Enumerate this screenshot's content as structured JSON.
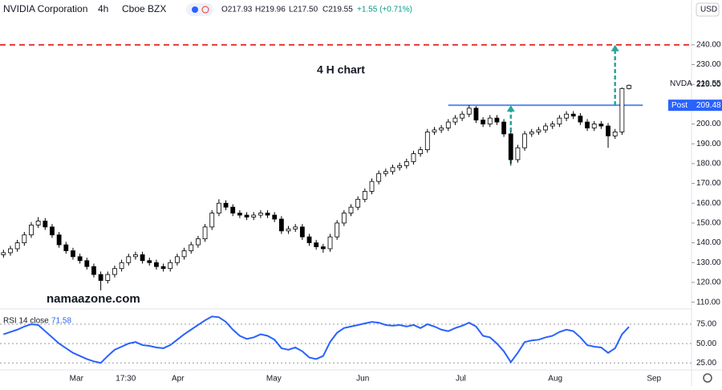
{
  "header": {
    "symbol": "NVIDIA Corporation",
    "interval": "4h",
    "exchange": "Cboe BZX",
    "open": "O217.93",
    "high": "H219.96",
    "low": "L217.50",
    "close": "C219.55",
    "change": "+1.55 (+0.71%)",
    "currency": "USD"
  },
  "annotations": {
    "chart_label": "4 H chart",
    "watermark": "namaazone.com",
    "symbol_tag": "NVDA",
    "post_tag": "Post"
  },
  "chart_data": [
    {
      "type": "candlestick",
      "up_color": "#ffffff",
      "down_color": "#000000",
      "open": [
        134,
        135,
        137,
        140,
        144,
        149,
        151,
        148,
        144,
        139,
        136,
        133,
        131,
        128,
        124,
        121,
        124,
        127,
        130,
        133,
        134,
        131,
        130,
        128,
        127,
        130,
        133,
        136,
        139,
        142,
        148,
        155,
        160,
        158,
        155,
        154,
        153,
        154,
        155,
        154,
        152,
        146,
        147,
        148,
        143,
        140,
        138,
        137,
        143,
        150,
        155,
        158,
        162,
        166,
        171,
        175,
        176,
        178,
        179,
        181,
        185,
        187,
        196,
        197,
        198,
        201,
        203,
        205,
        208,
        202,
        200,
        203,
        201,
        195,
        182,
        188,
        195,
        196,
        197,
        199,
        200,
        203,
        205,
        204,
        201,
        198,
        200,
        199,
        194,
        196,
        217.93
      ],
      "high": [
        136.5,
        138.5,
        141.5,
        145.5,
        150.5,
        153,
        152.5,
        149.5,
        145.5,
        140.5,
        137.5,
        134.5,
        132.5,
        129.5,
        125.5,
        125.5,
        128.5,
        131.5,
        134.5,
        135.5,
        135.5,
        132.5,
        131.5,
        129.5,
        131.5,
        134.5,
        137.5,
        140.5,
        143.5,
        149.5,
        156.5,
        162,
        161.5,
        159.5,
        156.5,
        155.5,
        155.5,
        156.5,
        156.5,
        155.5,
        153.5,
        148.5,
        149.5,
        149.5,
        144.5,
        141.5,
        139.5,
        144.5,
        151.5,
        156.5,
        159.5,
        163.5,
        167.5,
        172.5,
        176.5,
        177.5,
        179.5,
        180.5,
        182.5,
        186.5,
        188.5,
        197.5,
        198.5,
        199.5,
        202.5,
        204.5,
        206.5,
        209.5,
        209,
        203.5,
        204.5,
        204.5,
        202.5,
        196.5,
        189.5,
        196.5,
        197.5,
        198.5,
        200.5,
        201.5,
        204.5,
        206.5,
        206.5,
        205.5,
        202.5,
        201.5,
        201.5,
        200.5,
        197.5,
        218.5,
        219.96
      ],
      "low": [
        132.5,
        133.5,
        135.5,
        138.5,
        142.5,
        147.5,
        146.5,
        142.5,
        137.5,
        134.5,
        131.5,
        129.5,
        126.5,
        122.5,
        116,
        119.5,
        122.5,
        125.5,
        128.5,
        131.5,
        129.5,
        128.5,
        126.5,
        125.5,
        125.5,
        128.5,
        131.5,
        134.5,
        137.5,
        140.5,
        146.5,
        153.5,
        156.5,
        153.5,
        152.5,
        151.5,
        151.5,
        152.5,
        152.5,
        150.5,
        144.5,
        144.5,
        145.5,
        141.5,
        138.5,
        136.5,
        135,
        135.5,
        141.5,
        148.5,
        153.5,
        156.5,
        160.5,
        164.5,
        169.5,
        173.5,
        174.5,
        176.5,
        177.5,
        179.5,
        183.5,
        185.5,
        194.5,
        195.5,
        196.5,
        199.5,
        201.5,
        203.5,
        200.5,
        198.5,
        198.5,
        199.5,
        193.5,
        179,
        180.5,
        186.5,
        193.5,
        194.5,
        195.5,
        197.5,
        198.5,
        201.5,
        202.5,
        199.5,
        196.5,
        196.5,
        197.5,
        188,
        192.5,
        194.5,
        217.5
      ],
      "close": [
        135,
        137,
        140,
        144,
        149,
        151,
        148,
        144,
        139,
        136,
        133,
        131,
        128,
        124,
        121,
        124,
        127,
        130,
        133,
        134,
        131,
        130,
        128,
        127,
        130,
        133,
        136,
        139,
        142,
        148,
        155,
        160,
        158,
        155,
        154,
        153,
        154,
        155,
        154,
        152,
        146,
        147,
        148,
        143,
        140,
        138,
        137,
        143,
        150,
        155,
        158,
        162,
        166,
        171,
        175,
        176,
        178,
        179,
        181,
        185,
        187,
        196,
        197,
        198,
        201,
        203,
        205,
        208,
        202,
        200,
        203,
        201,
        195,
        182,
        188,
        195,
        196,
        197,
        199,
        200,
        203,
        205,
        204,
        201,
        198,
        200,
        199,
        194,
        196,
        217.93,
        219.55
      ],
      "xlim": [
        0,
        99.5
      ],
      "xticks": [
        {
          "value": 11,
          "label": "Mar"
        },
        {
          "value": 18.1,
          "label": "17:30"
        },
        {
          "value": 25.6,
          "label": "Apr"
        },
        {
          "value": 39.4,
          "label": "May"
        },
        {
          "value": 52.2,
          "label": "Jun"
        },
        {
          "value": 66.3,
          "label": "Jul"
        },
        {
          "value": 79.9,
          "label": "Aug"
        },
        {
          "value": 94.1,
          "label": "Sep"
        }
      ],
      "ylim": [
        106.6,
        252.1
      ],
      "yticks": [
        {
          "value": 110,
          "label": "110.00"
        },
        {
          "value": 120,
          "label": "120.00"
        },
        {
          "value": 130,
          "label": "130.00"
        },
        {
          "value": 140,
          "label": "140.00"
        },
        {
          "value": 150,
          "label": "150.00"
        },
        {
          "value": 160,
          "label": "160.00"
        },
        {
          "value": 170,
          "label": "170.00"
        },
        {
          "value": 180,
          "label": "180.00"
        },
        {
          "value": 190,
          "label": "190.00"
        },
        {
          "value": 200,
          "label": "200.00"
        },
        {
          "value": 210,
          "label": "210.00"
        },
        {
          "value": 220,
          "label": "220.00"
        },
        {
          "value": 230,
          "label": "230.00"
        },
        {
          "value": 240,
          "label": "240.00"
        }
      ],
      "levels": [
        {
          "value": 240,
          "color": "#e53935",
          "dashed": true
        },
        {
          "value": 209.48,
          "color": "#5b8def",
          "dashed": false,
          "from": 64.5,
          "to": 92.5
        }
      ],
      "arrows": [
        {
          "x": 73.5,
          "from": 180,
          "to": 209.48,
          "color": "#26a69a"
        },
        {
          "x": 88.5,
          "from": 209.48,
          "to": 240,
          "color": "#26a69a"
        }
      ]
    },
    {
      "type": "line",
      "name": "RSI 14 close",
      "color": "#2962ff",
      "values": [
        62,
        65,
        68,
        72,
        75,
        74,
        66,
        58,
        50,
        44,
        38,
        34,
        30,
        27,
        25,
        34,
        42,
        46,
        50,
        52,
        48,
        47,
        45,
        44,
        48,
        55,
        62,
        68,
        74,
        80,
        85,
        84,
        78,
        68,
        60,
        56,
        58,
        62,
        60,
        55,
        44,
        42,
        45,
        40,
        32,
        30,
        34,
        52,
        64,
        70,
        72,
        74,
        76,
        78,
        77,
        74,
        73,
        74,
        72,
        74,
        70,
        75,
        72,
        68,
        66,
        70,
        73,
        77,
        72,
        60,
        58,
        50,
        40,
        26,
        38,
        52,
        54,
        55,
        58,
        60,
        65,
        68,
        66,
        58,
        48,
        46,
        45,
        38,
        44,
        62,
        71.58
      ],
      "ylim": [
        17,
        89.5
      ],
      "yticks": [
        {
          "value": 25,
          "label": "25.00"
        },
        {
          "value": 50,
          "label": "50.00"
        },
        {
          "value": 75,
          "label": "75.00"
        }
      ]
    }
  ]
}
